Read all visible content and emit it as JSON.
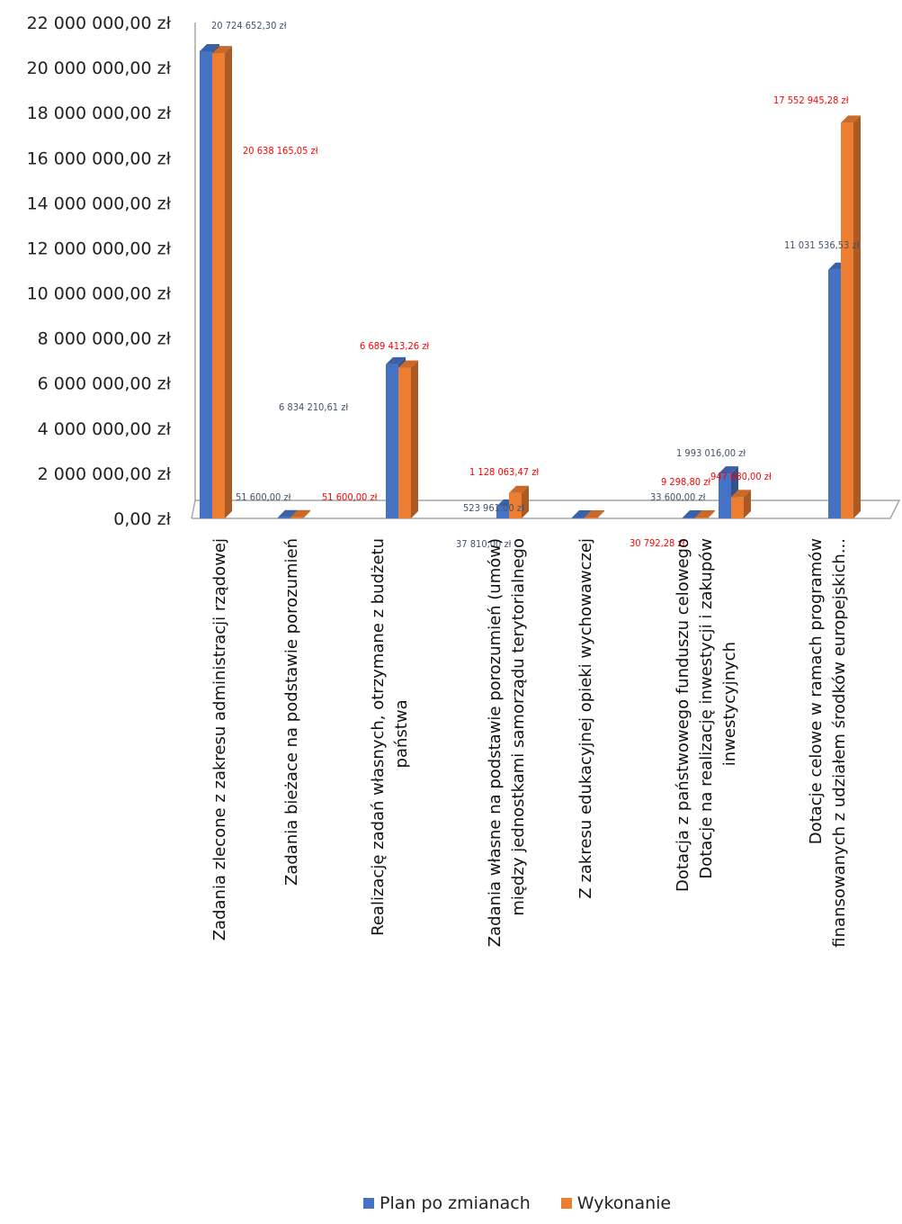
{
  "chart_data": {
    "type": "bar",
    "categories": [
      [
        "Zadania zlecone z zakresu administracji rządowej"
      ],
      [
        "Zadania bieżace na podstawie porozumień"
      ],
      [
        "Realizację zadań własnych, otrzymane z budżetu",
        "państwa"
      ],
      [
        "Zadania własne na podstawie porozumień (umów)",
        "między jednostkami samorządu terytorialnego"
      ],
      [
        "Z zakresu edukacyjnej opieki wychowawczej"
      ],
      [
        "Dotacja z państwowego funduszu celowego"
      ],
      [
        "Dotacje na realizację inwestycji i zakupów",
        "inwestycyjnych"
      ],
      [
        "Dotacje celowe w ramach programów",
        "finansowanych z udziałem środków europejskich..."
      ]
    ],
    "series": [
      {
        "name": "Plan po zmianach",
        "color": "#4472C4",
        "values": [
          20724652.3,
          51600.0,
          6834210.61,
          523961.0,
          37810.0,
          33600.0,
          1993016.0,
          11031536.53
        ],
        "labels": [
          "20 724 652,30 zł",
          "51 600,00 zł",
          "6 834 210,61 zł",
          "523 961,00 zł",
          "37 810,00 zł",
          "33 600,00 zł",
          "1 993 016,00 zł",
          "11 031 536,53 zł"
        ]
      },
      {
        "name": "Wykonanie",
        "color": "#ED7D31",
        "values": [
          20638165.05,
          51600.0,
          6689413.26,
          1128063.47,
          30792.28,
          9298.8,
          947680.0,
          17552945.28
        ],
        "labels": [
          "20 638 165,05 zł",
          "51 600,00 zł",
          "6 689 413,26 zł",
          "1 128 063,47 zł",
          "30 792,28 zł",
          "9 298,80 zł",
          "947 680,00 zł",
          "17 552 945,28 zł"
        ]
      }
    ],
    "yticks": [
      "0,00 zł",
      "2 000 000,00 zł",
      "4 000 000,00 zł",
      "6 000 000,00 zł",
      "8 000 000,00 zł",
      "10 000 000,00 zł",
      "12 000 000,00 zł",
      "14 000 000,00 zł",
      "16 000 000,00 zł",
      "18 000 000,00 zł",
      "20 000 000,00 zł",
      "22 000 000,00 zł"
    ],
    "ylim": [
      0,
      22000000
    ],
    "grid": false,
    "legend_position": "bottom",
    "label_color_plan": "#44546A",
    "label_color_wykonanie": "#FF0000"
  },
  "legend": {
    "plan": "Plan po zmianach",
    "wykonanie": "Wykonanie"
  }
}
